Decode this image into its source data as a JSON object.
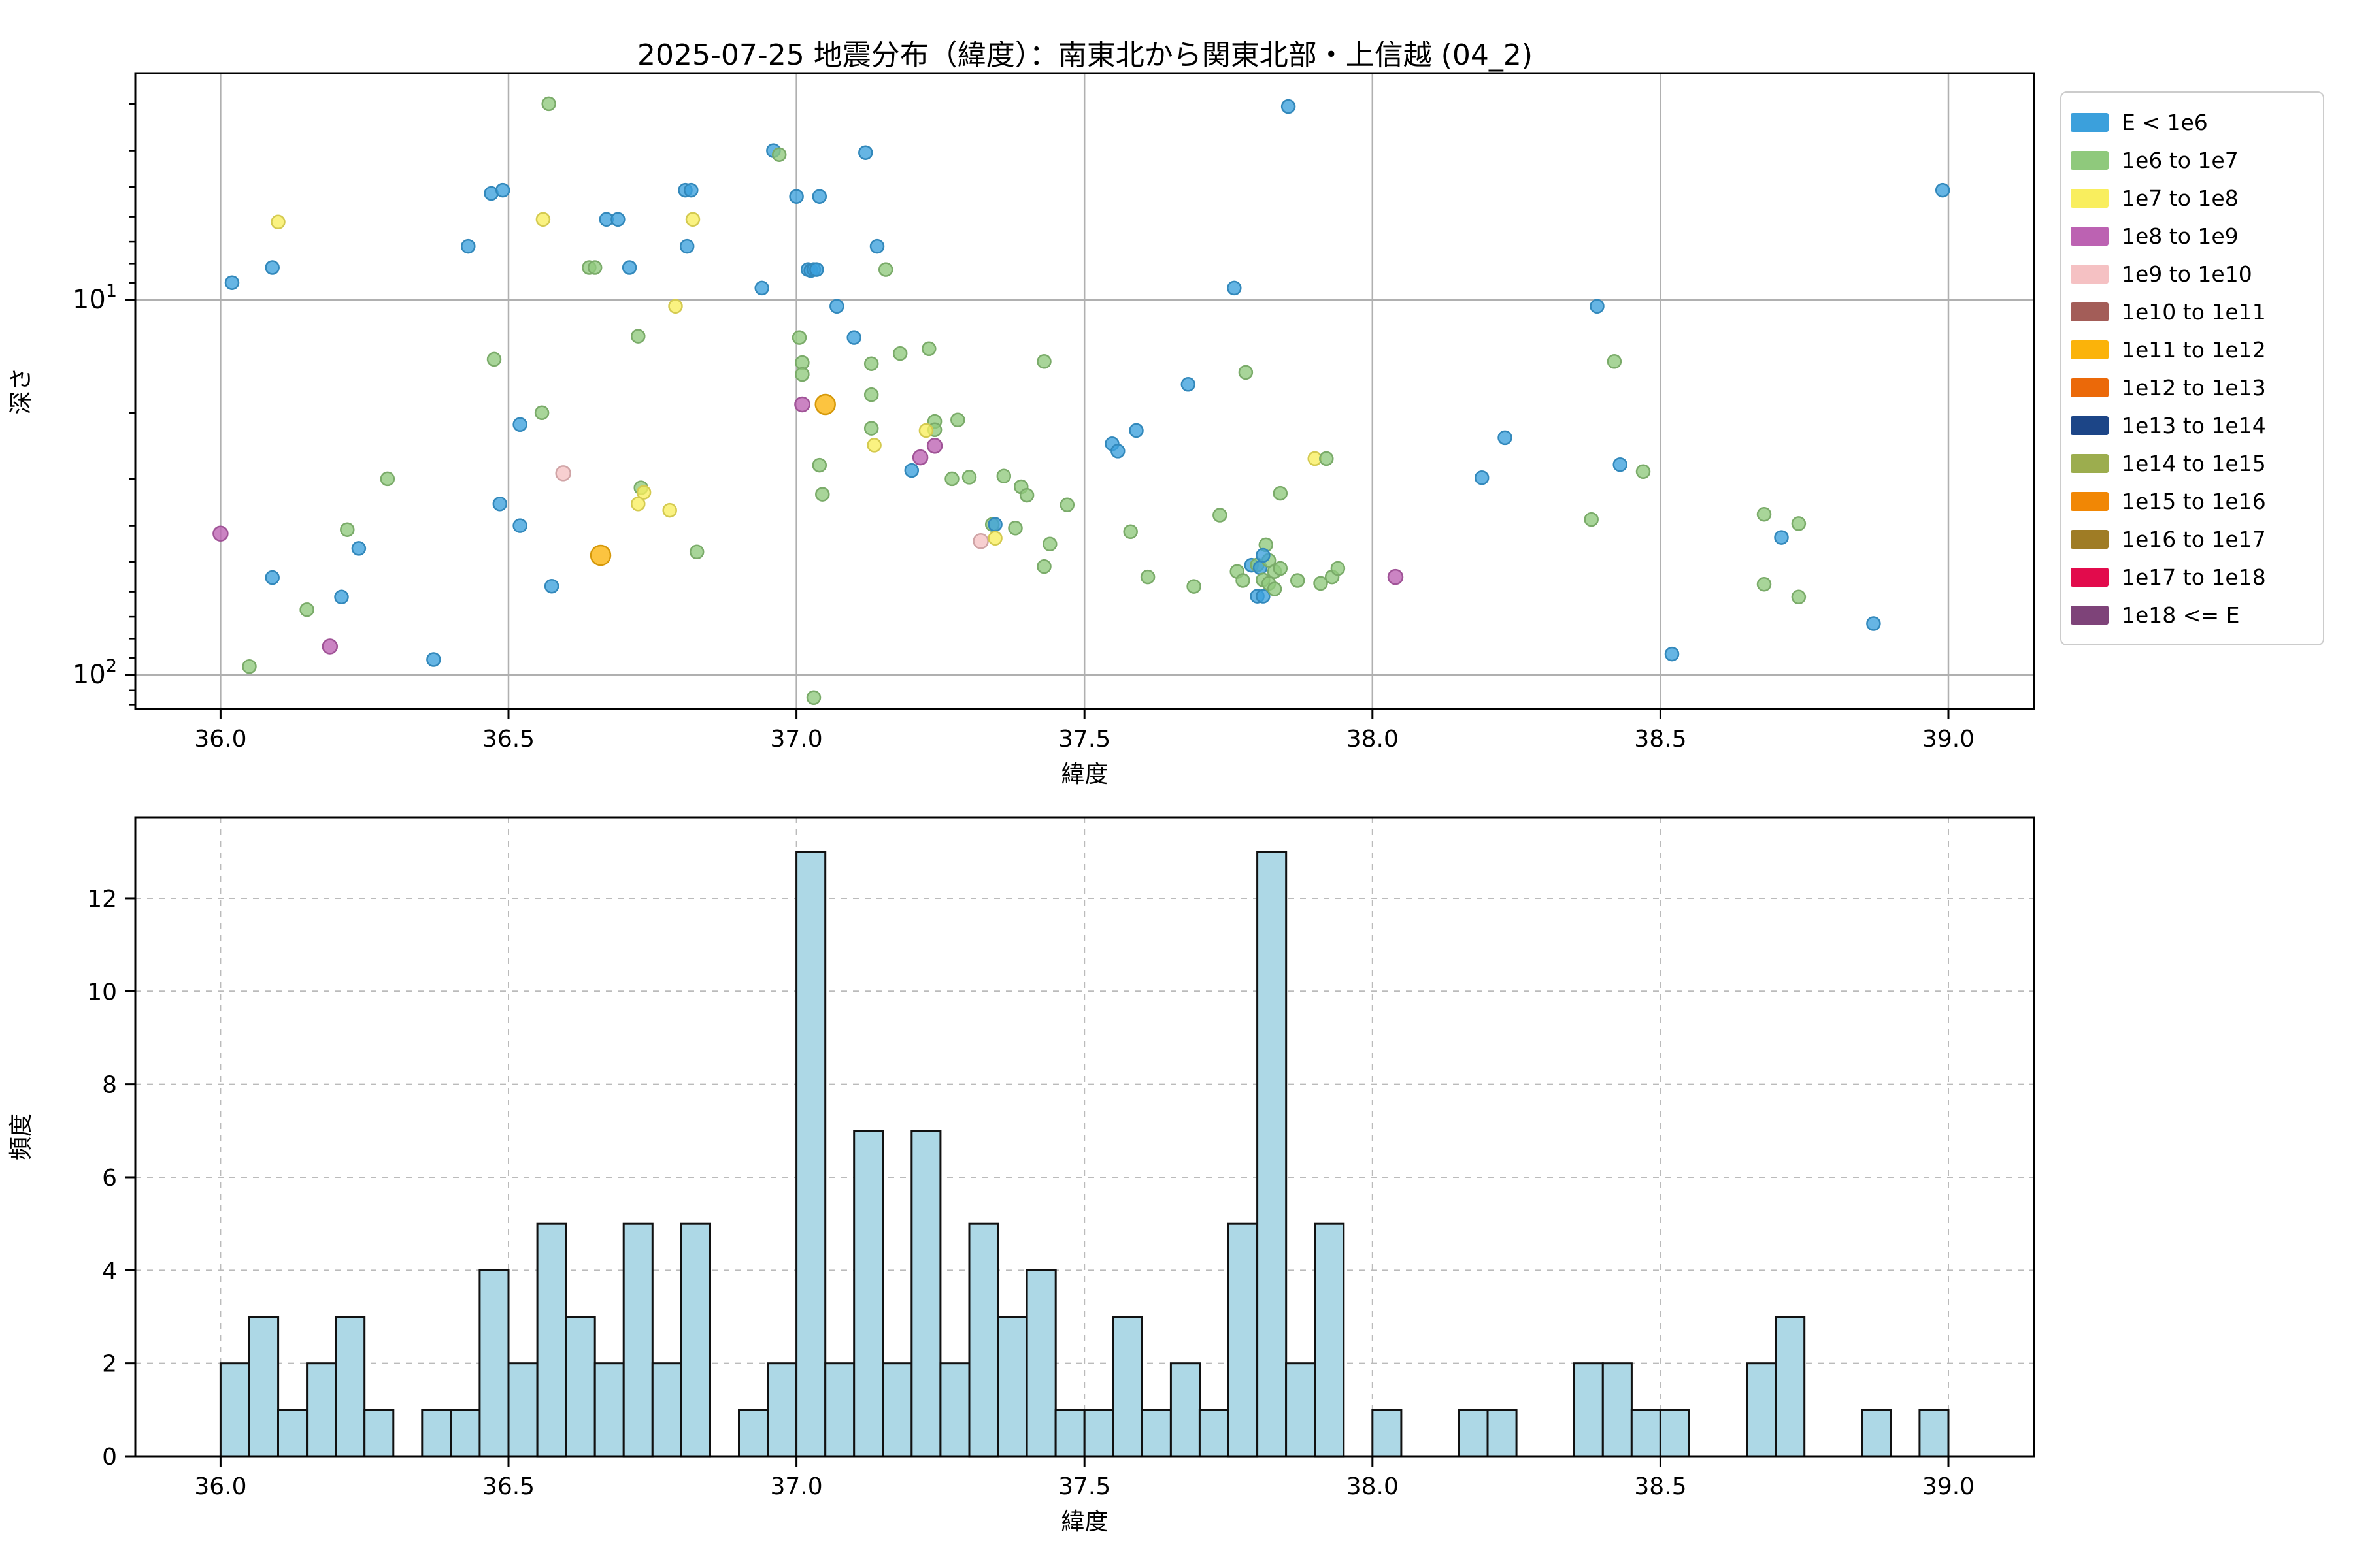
{
  "title": "2025-07-25 地震分布（緯度）：南東北から関東北部・上信越 (04_2)",
  "axes": {
    "xlabel": "緯度",
    "ylabel_scatter": "深さ",
    "ylabel_hist": "頻度",
    "xtick_labels": [
      "36.0",
      "36.5",
      "37.0",
      "37.5",
      "38.0",
      "38.5",
      "39.0"
    ],
    "xtick_values": [
      36.0,
      36.5,
      37.0,
      37.5,
      38.0,
      38.5,
      39.0
    ],
    "scatter_ytick_labels": [
      {
        "base": "10",
        "sup": "1",
        "value": 10
      },
      {
        "base": "10",
        "sup": "2",
        "value": 100
      }
    ],
    "hist_ytick_labels": [
      "0",
      "2",
      "4",
      "6",
      "8",
      "10",
      "12"
    ],
    "hist_ytick_values": [
      0,
      2,
      4,
      6,
      8,
      10,
      12
    ]
  },
  "legend": {
    "entries": [
      {
        "label": "E < 1e6",
        "color": "#3BA0DC"
      },
      {
        "label": "1e6 to 1e7",
        "color": "#8FC97C"
      },
      {
        "label": "1e7 to 1e8",
        "color": "#F9EE5E"
      },
      {
        "label": "1e8 to 1e9",
        "color": "#BC62B2"
      },
      {
        "label": "1e9 to 1e10",
        "color": "#F5C1C3"
      },
      {
        "label": "1e10 to 1e11",
        "color": "#A35D58"
      },
      {
        "label": "1e11 to 1e12",
        "color": "#FBB30A"
      },
      {
        "label": "1e12 to 1e13",
        "color": "#EB6909"
      },
      {
        "label": "1e13 to 1e14",
        "color": "#1C4587"
      },
      {
        "label": "1e14 to 1e15",
        "color": "#9CAD4E"
      },
      {
        "label": "1e15 to 1e16",
        "color": "#F18705"
      },
      {
        "label": "1e16 to 1e17",
        "color": "#9F7C25"
      },
      {
        "label": "1e17 to 1e18",
        "color": "#E20B4C"
      },
      {
        "label": "1e18 <= E",
        "color": "#7E4379"
      }
    ]
  },
  "chart_data": [
    {
      "type": "scatter",
      "title": "2025-07-25 地震分布（緯度）：南東北から関東北部・上信越 (04_2)",
      "xlabel": "緯度",
      "ylabel": "深さ",
      "x_range": [
        35.85,
        39.15
      ],
      "y_scale": "log",
      "y_inverted": true,
      "y_range_depth_km": [
        2.5,
        123
      ],
      "grid": "solid-major",
      "legend_position": "outside-right",
      "y_minor_ticks": [
        3,
        4,
        5,
        6,
        7,
        8,
        9,
        20,
        30,
        40,
        50,
        60,
        70,
        80,
        90,
        110,
        120
      ],
      "marker_opacity": 0.78,
      "points_format": [
        "latitude",
        "depth_km",
        "energy_class_index",
        "radius_px"
      ],
      "points": [
        [
          36.0,
          42,
          3,
          11
        ],
        [
          36.02,
          9.0,
          0,
          10
        ],
        [
          36.05,
          95,
          1,
          10
        ],
        [
          36.09,
          8.2,
          0,
          10
        ],
        [
          36.09,
          55,
          0,
          10
        ],
        [
          36.1,
          6.2,
          2,
          10
        ],
        [
          36.15,
          67,
          1,
          10
        ],
        [
          36.19,
          84,
          3,
          11
        ],
        [
          36.21,
          62,
          0,
          10
        ],
        [
          36.22,
          41,
          1,
          10
        ],
        [
          36.24,
          46,
          0,
          10
        ],
        [
          36.29,
          30,
          1,
          10
        ],
        [
          36.37,
          91,
          0,
          10
        ],
        [
          36.43,
          7.2,
          0,
          10
        ],
        [
          36.47,
          5.2,
          0,
          10
        ],
        [
          36.475,
          14.4,
          1,
          10
        ],
        [
          36.485,
          35,
          0,
          10
        ],
        [
          36.49,
          5.1,
          0,
          10
        ],
        [
          36.52,
          21.5,
          0,
          10
        ],
        [
          36.52,
          40,
          0,
          10
        ],
        [
          36.558,
          20,
          1,
          10
        ],
        [
          36.56,
          6.1,
          2,
          10
        ],
        [
          36.57,
          3.0,
          1,
          10
        ],
        [
          36.575,
          58,
          0,
          10
        ],
        [
          36.595,
          29,
          4,
          11
        ],
        [
          36.64,
          8.2,
          1,
          10
        ],
        [
          36.65,
          8.2,
          1,
          10
        ],
        [
          36.66,
          48,
          6,
          15
        ],
        [
          36.67,
          6.1,
          0,
          10
        ],
        [
          36.69,
          6.1,
          0,
          10
        ],
        [
          36.71,
          8.2,
          0,
          10
        ],
        [
          36.725,
          12.5,
          1,
          10
        ],
        [
          36.725,
          35,
          2,
          10
        ],
        [
          36.73,
          31.7,
          1,
          10
        ],
        [
          36.735,
          32.6,
          2,
          10
        ],
        [
          36.78,
          36.4,
          2,
          10
        ],
        [
          36.79,
          10.4,
          2,
          10
        ],
        [
          36.807,
          5.1,
          0,
          10
        ],
        [
          36.81,
          7.2,
          0,
          10
        ],
        [
          36.817,
          5.1,
          0,
          10
        ],
        [
          36.82,
          6.1,
          2,
          10
        ],
        [
          36.827,
          47,
          1,
          10
        ],
        [
          36.94,
          9.3,
          0,
          10
        ],
        [
          36.96,
          4.0,
          0,
          10
        ],
        [
          36.97,
          4.1,
          1,
          10
        ],
        [
          37.0,
          5.3,
          0,
          10
        ],
        [
          37.04,
          5.3,
          0,
          10
        ],
        [
          37.02,
          8.3,
          0,
          10
        ],
        [
          37.025,
          8.35,
          0,
          10
        ],
        [
          37.03,
          8.3,
          0,
          10
        ],
        [
          37.035,
          8.3,
          0,
          10
        ],
        [
          37.005,
          12.6,
          1,
          10
        ],
        [
          37.01,
          14.7,
          1,
          10
        ],
        [
          37.01,
          15.8,
          1,
          10
        ],
        [
          37.01,
          19.0,
          3,
          11
        ],
        [
          37.04,
          27.6,
          1,
          10
        ],
        [
          37.045,
          33,
          1,
          10
        ],
        [
          37.03,
          115,
          1,
          10
        ],
        [
          37.05,
          19.0,
          6,
          15
        ],
        [
          37.07,
          10.4,
          0,
          10
        ],
        [
          37.12,
          4.05,
          0,
          10
        ],
        [
          37.14,
          7.2,
          0,
          10
        ],
        [
          37.1,
          12.6,
          0,
          10
        ],
        [
          37.13,
          14.8,
          1,
          10
        ],
        [
          37.13,
          17.9,
          1,
          10
        ],
        [
          37.13,
          22.0,
          1,
          10
        ],
        [
          37.135,
          24.4,
          2,
          10
        ],
        [
          37.155,
          8.3,
          1,
          10
        ],
        [
          37.18,
          13.9,
          1,
          10
        ],
        [
          37.23,
          13.5,
          1,
          10
        ],
        [
          37.24,
          21.1,
          1,
          10
        ],
        [
          37.24,
          22.2,
          1,
          10
        ],
        [
          37.225,
          22.3,
          2,
          10
        ],
        [
          37.24,
          24.5,
          3,
          11
        ],
        [
          37.215,
          26.3,
          3,
          11
        ],
        [
          37.2,
          28.5,
          0,
          10
        ],
        [
          37.28,
          20.9,
          1,
          10
        ],
        [
          37.27,
          30,
          1,
          10
        ],
        [
          37.3,
          29.7,
          1,
          10
        ],
        [
          37.32,
          44,
          4,
          11
        ],
        [
          37.34,
          39.7,
          1,
          10
        ],
        [
          37.345,
          39.7,
          0,
          10
        ],
        [
          37.345,
          43.2,
          2,
          10
        ],
        [
          37.38,
          40.6,
          1,
          10
        ],
        [
          37.36,
          29.5,
          1,
          10
        ],
        [
          37.39,
          31.5,
          1,
          10
        ],
        [
          37.43,
          14.6,
          1,
          10
        ],
        [
          37.4,
          33.2,
          1,
          10
        ],
        [
          37.44,
          44.8,
          1,
          10
        ],
        [
          37.43,
          51.4,
          1,
          10
        ],
        [
          37.47,
          35.2,
          1,
          10
        ],
        [
          37.548,
          24.2,
          0,
          10
        ],
        [
          37.558,
          25.3,
          0,
          10
        ],
        [
          37.59,
          22.3,
          0,
          10
        ],
        [
          37.58,
          41.5,
          1,
          10
        ],
        [
          37.61,
          54.8,
          1,
          10
        ],
        [
          37.68,
          16.8,
          0,
          10
        ],
        [
          37.69,
          58.1,
          1,
          10
        ],
        [
          37.735,
          37.5,
          1,
          10
        ],
        [
          37.76,
          9.3,
          0,
          10
        ],
        [
          37.78,
          15.6,
          1,
          10
        ],
        [
          37.765,
          53,
          1,
          10
        ],
        [
          37.79,
          51,
          0,
          10
        ],
        [
          37.775,
          56,
          1,
          10
        ],
        [
          37.84,
          32.8,
          1,
          10
        ],
        [
          37.8,
          50.9,
          1,
          10
        ],
        [
          37.805,
          51.8,
          0,
          10
        ],
        [
          37.81,
          55.8,
          1,
          10
        ],
        [
          37.8,
          61.7,
          0,
          10
        ],
        [
          37.81,
          61.7,
          0,
          10
        ],
        [
          37.82,
          49.5,
          1,
          10
        ],
        [
          37.83,
          53,
          1,
          10
        ],
        [
          37.82,
          57,
          1,
          10
        ],
        [
          37.84,
          52,
          1,
          10
        ],
        [
          37.83,
          59,
          1,
          10
        ],
        [
          37.815,
          45,
          1,
          10
        ],
        [
          37.81,
          48,
          0,
          10
        ],
        [
          37.854,
          3.05,
          0,
          10
        ],
        [
          37.87,
          56,
          1,
          10
        ],
        [
          37.9,
          26.5,
          2,
          10
        ],
        [
          37.92,
          26.5,
          1,
          10
        ],
        [
          37.93,
          54.8,
          1,
          10
        ],
        [
          37.91,
          57,
          1,
          10
        ],
        [
          37.94,
          52,
          1,
          10
        ],
        [
          38.04,
          54.8,
          3,
          11
        ],
        [
          38.19,
          29.8,
          0,
          10
        ],
        [
          38.23,
          23.3,
          0,
          10
        ],
        [
          38.38,
          38.5,
          1,
          10
        ],
        [
          38.39,
          10.4,
          0,
          10
        ],
        [
          38.42,
          14.6,
          1,
          10
        ],
        [
          38.43,
          27.5,
          0,
          10
        ],
        [
          38.47,
          28.7,
          1,
          10
        ],
        [
          38.52,
          88,
          0,
          10
        ],
        [
          38.68,
          37.3,
          1,
          10
        ],
        [
          38.68,
          57.3,
          1,
          10
        ],
        [
          38.71,
          43,
          0,
          10
        ],
        [
          38.74,
          39.5,
          1,
          10
        ],
        [
          38.74,
          62,
          1,
          10
        ],
        [
          38.87,
          73,
          0,
          10
        ],
        [
          38.99,
          5.1,
          0,
          10
        ]
      ]
    },
    {
      "type": "bar",
      "subtype": "histogram",
      "xlabel": "緯度",
      "ylabel": "頻度",
      "bin_start": 36.0,
      "bin_width": 0.05,
      "counts": [
        2,
        3,
        1,
        2,
        3,
        1,
        0,
        1,
        1,
        4,
        2,
        5,
        3,
        2,
        5,
        2,
        5,
        0,
        1,
        2,
        13,
        2,
        7,
        2,
        7,
        2,
        5,
        3,
        4,
        1,
        1,
        3,
        1,
        2,
        1,
        5,
        13,
        2,
        5,
        0,
        1,
        0,
        0,
        1,
        1,
        0,
        0,
        2,
        2,
        1,
        1,
        0,
        0,
        2,
        3,
        0,
        0,
        1,
        0,
        1
      ],
      "total_events": 140,
      "ylim": [
        0,
        13.7
      ],
      "grid": "dashed",
      "bar_color": "#ADD8E6",
      "bar_edge_color": "#111111"
    }
  ],
  "style_colors": {
    "grid_solid": "#b0b0b0",
    "grid_dashed": "#bbbbbb",
    "spine": "#000000",
    "text": "#000000",
    "legend_border": "#cccccc",
    "background": "#ffffff"
  }
}
